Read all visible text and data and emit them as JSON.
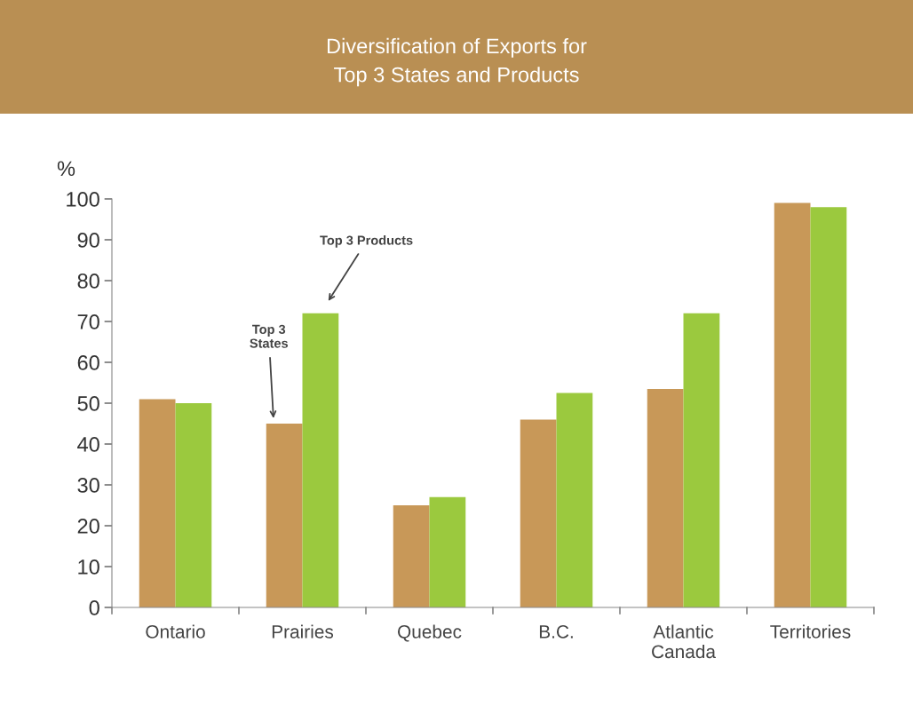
{
  "chart_data": {
    "type": "bar",
    "title": "Diversification of Exports for\nTop 3 States and Products",
    "ylabel": "%",
    "categories": [
      "Ontario",
      "Prairies",
      "Quebec",
      "B.C.",
      "Atlantic\nCanada",
      "Territories"
    ],
    "series": [
      {
        "color": "#c89858",
        "values": [
          51,
          45,
          25,
          46,
          53.5,
          99
        ]
      },
      {
        "color": "#9bc93e",
        "values": [
          50,
          72,
          27,
          52.5,
          72,
          98
        ]
      }
    ],
    "ylim": [
      0,
      100
    ],
    "yticks": [
      0,
      10,
      20,
      30,
      40,
      50,
      60,
      70,
      80,
      90,
      100
    ],
    "grid": false,
    "legend": false,
    "annotations": [
      "Top 3\nStates",
      "Top 3 Products"
    ]
  }
}
